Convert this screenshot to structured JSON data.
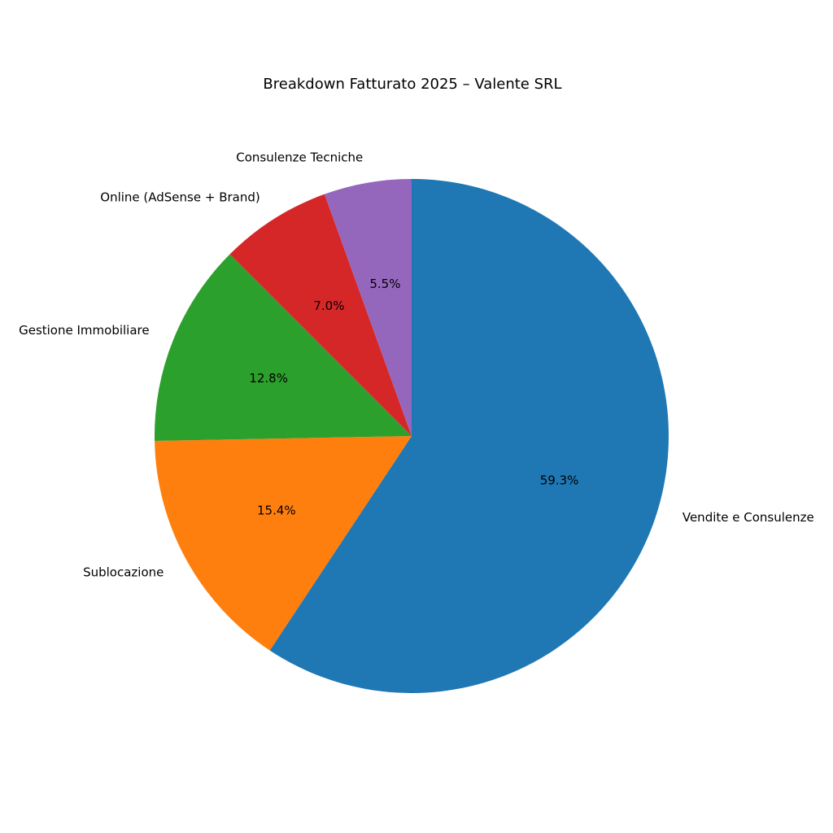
{
  "chart_data": {
    "type": "pie",
    "title": "Breakdown Fatturato 2025 – Valente SRL",
    "start_angle_deg": 90,
    "direction": "clockwise",
    "slices": [
      {
        "label": "Vendite e Consulenze",
        "value": 59.3,
        "pct_label": "59.3%",
        "color": "#1f77b4"
      },
      {
        "label": "Sublocazione",
        "value": 15.4,
        "pct_label": "15.4%",
        "color": "#ff7f0e"
      },
      {
        "label": "Gestione Immobiliare",
        "value": 12.8,
        "pct_label": "12.8%",
        "color": "#2ca02c"
      },
      {
        "label": "Online (AdSense + Brand)",
        "value": 7.0,
        "pct_label": "7.0%",
        "color": "#d62728"
      },
      {
        "label": "Consulenze Tecniche",
        "value": 5.5,
        "pct_label": "5.5%",
        "color": "#9467bd"
      }
    ]
  }
}
